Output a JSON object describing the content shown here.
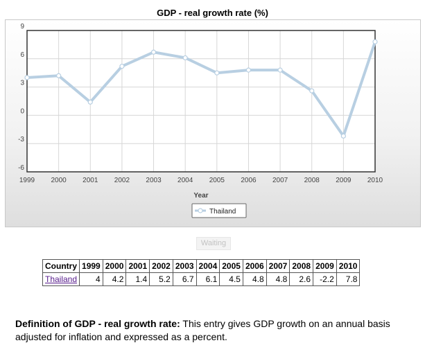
{
  "chart_data": {
    "type": "line",
    "title": "GDP - real growth rate (%)",
    "xlabel": "Year",
    "ylabel": "",
    "x": [
      "1999",
      "2000",
      "2001",
      "2002",
      "2003",
      "2004",
      "2005",
      "2006",
      "2007",
      "2008",
      "2009",
      "2010"
    ],
    "y_ticks": [
      "9",
      "6",
      "3",
      "0",
      "-3",
      "-6"
    ],
    "ylim": [
      -6,
      9
    ],
    "grid": true,
    "legend_position": "bottom",
    "series": [
      {
        "name": "Thailand",
        "values": [
          4,
          4.2,
          1.4,
          5.2,
          6.7,
          6.1,
          4.5,
          4.8,
          4.8,
          2.6,
          -2.2,
          7.8
        ]
      }
    ],
    "line_color": "#b8cfe2",
    "marker_color": "#ffffff"
  },
  "waiting_text": "Waiting",
  "table": {
    "header_first": "Country",
    "years": [
      "1999",
      "2000",
      "2001",
      "2002",
      "2003",
      "2004",
      "2005",
      "2006",
      "2007",
      "2008",
      "2009",
      "2010"
    ],
    "rows": [
      {
        "country": "Thailand",
        "values": [
          "4",
          "4.2",
          "1.4",
          "5.2",
          "6.7",
          "6.1",
          "4.5",
          "4.8",
          "4.8",
          "2.6",
          "-2.2",
          "7.8"
        ]
      }
    ]
  },
  "definition": {
    "label": "Definition of GDP - real growth rate:",
    "text": " This entry gives GDP growth on an annual basis adjusted for inflation and expressed as a percent."
  }
}
